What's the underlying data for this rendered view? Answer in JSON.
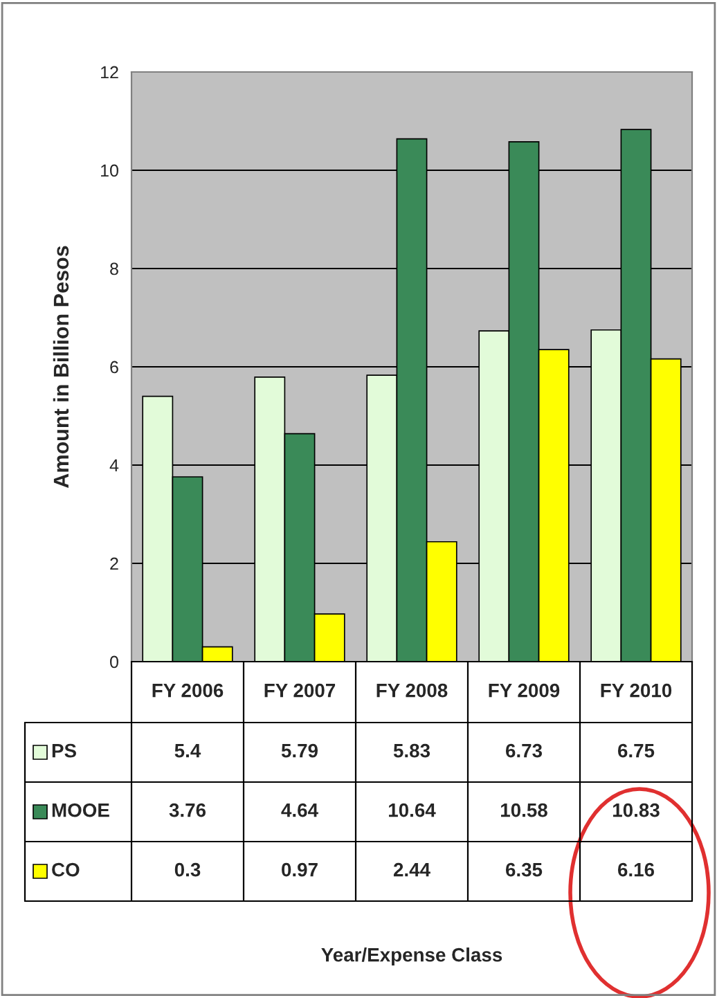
{
  "chart_data": {
    "type": "bar",
    "ylabel": "Amount in Billion Pesos",
    "annotations": [
      "Year/Expense Class"
    ],
    "categories": [
      "FY 2006",
      "FY 2007",
      "FY 2008",
      "FY 2009",
      "FY 2010"
    ],
    "series": [
      {
        "name": "PS",
        "color": "#e2fbd9",
        "values": [
          5.4,
          5.79,
          5.83,
          6.73,
          6.75
        ]
      },
      {
        "name": "MOOE",
        "color": "#3a8a58",
        "values": [
          3.76,
          4.64,
          10.64,
          10.58,
          10.83
        ]
      },
      {
        "name": "CO",
        "color": "#ffff00",
        "values": [
          0.3,
          0.97,
          2.44,
          6.35,
          6.16
        ]
      }
    ],
    "ylim": [
      0,
      12
    ],
    "yticks": [
      0,
      2,
      4,
      6,
      8,
      10,
      12
    ],
    "grid": "y",
    "data_labels": true,
    "legend": "bottom left"
  }
}
